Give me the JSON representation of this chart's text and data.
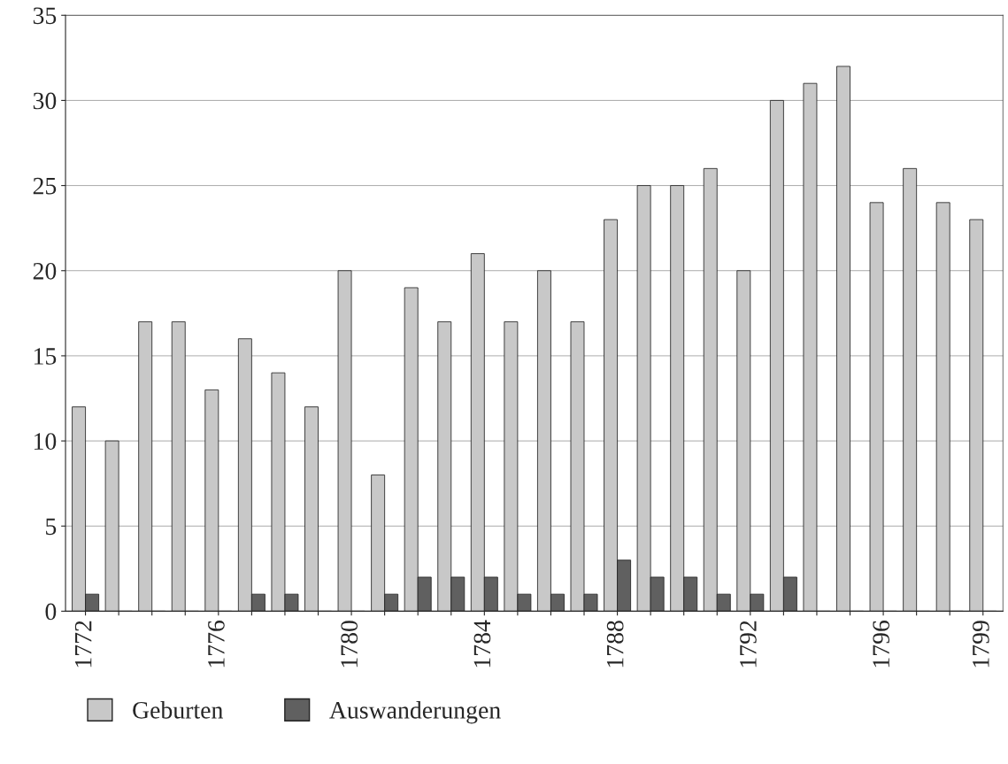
{
  "chart_data": {
    "type": "bar",
    "categories": [
      "1772",
      null,
      null,
      null,
      "1776",
      null,
      null,
      null,
      "1780",
      null,
      null,
      null,
      "1784",
      null,
      null,
      null,
      "1788",
      null,
      null,
      null,
      "1792",
      null,
      null,
      null,
      "1796",
      null,
      null,
      "1799"
    ],
    "series": [
      {
        "name": "Geburten",
        "color": "#c8c8c8",
        "values": [
          12,
          10,
          17,
          17,
          13,
          16,
          14,
          12,
          20,
          8,
          19,
          17,
          21,
          17,
          20,
          17,
          23,
          25,
          25,
          26,
          20,
          30,
          31,
          32,
          24,
          26,
          24,
          23
        ]
      },
      {
        "name": "Auswanderungen",
        "color": "#606060",
        "values": [
          1,
          0,
          0,
          0,
          0,
          1,
          1,
          0,
          0,
          1,
          2,
          2,
          2,
          1,
          1,
          1,
          3,
          2,
          2,
          1,
          1,
          2,
          0,
          0,
          0,
          0,
          0,
          0
        ]
      }
    ],
    "ylim": [
      0,
      35
    ],
    "yticks": [
      0,
      5,
      10,
      15,
      20,
      25,
      30,
      35
    ],
    "grid": "y",
    "legend": "bottom left"
  }
}
